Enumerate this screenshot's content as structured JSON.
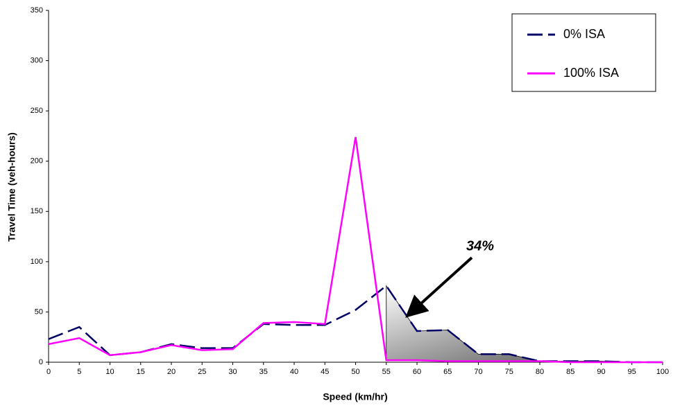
{
  "chart_data": {
    "type": "line",
    "x_label": "Speed (km/hr)",
    "y_label": "Travel Time (veh-hours)",
    "annotation": "34%",
    "x": [
      0,
      5,
      10,
      15,
      20,
      25,
      30,
      35,
      40,
      45,
      50,
      55,
      60,
      65,
      70,
      75,
      80,
      85,
      90,
      95,
      100
    ],
    "series": [
      {
        "name": "0% ISA",
        "color": "#000066",
        "line_style": "dashed",
        "values": [
          23,
          35,
          7,
          10,
          18,
          14,
          14,
          38,
          37,
          37,
          52,
          76,
          31,
          32,
          8,
          8,
          1,
          1,
          1,
          0,
          0
        ]
      },
      {
        "name": "100% ISA",
        "color": "#ff00ff",
        "line_style": "solid",
        "values": [
          18,
          24,
          7,
          10,
          17,
          12,
          13,
          39,
          40,
          38,
          224,
          2,
          2,
          1,
          1,
          1,
          1,
          0,
          0,
          0,
          0
        ]
      }
    ],
    "xlim": [
      0,
      100
    ],
    "xticks": [
      0,
      5,
      10,
      15,
      20,
      25,
      30,
      35,
      40,
      45,
      50,
      55,
      60,
      65,
      70,
      75,
      80,
      85,
      90,
      95,
      100
    ],
    "ylim": [
      0,
      350
    ],
    "yticks": [
      0,
      50,
      100,
      150,
      200,
      250,
      300,
      350
    ],
    "grid": false,
    "legend": "top-right"
  }
}
